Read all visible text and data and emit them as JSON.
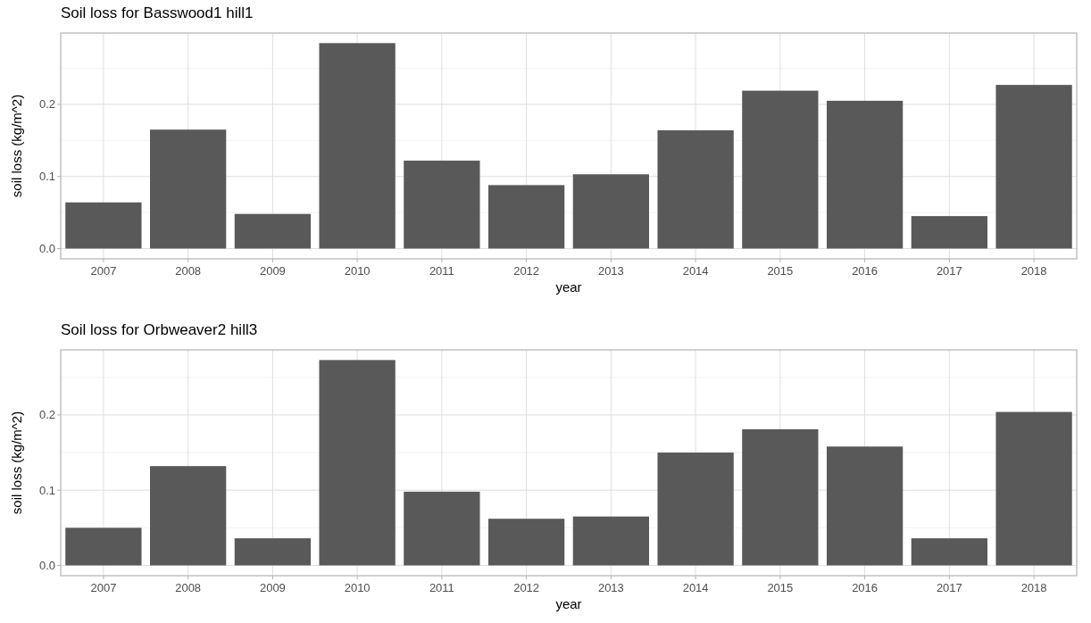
{
  "chart_data": [
    {
      "type": "bar",
      "title": "Soil loss for Basswood1 hill1",
      "xlabel": "year",
      "ylabel": "soil loss (kg/m^2)",
      "categories": [
        "2007",
        "2008",
        "2009",
        "2010",
        "2011",
        "2012",
        "2013",
        "2014",
        "2015",
        "2016",
        "2017",
        "2018"
      ],
      "values": [
        0.064,
        0.165,
        0.048,
        0.285,
        0.122,
        0.088,
        0.103,
        0.164,
        0.219,
        0.205,
        0.045,
        0.227
      ],
      "color": "#595959",
      "ylim": [
        -0.0143,
        0.299
      ],
      "yticks": [
        {
          "value": 0,
          "label": "0.0"
        },
        {
          "value": 0.1,
          "label": "0.1"
        },
        {
          "value": 0.2,
          "label": "0.2"
        }
      ],
      "grid": true
    },
    {
      "type": "bar",
      "title": "Soil loss for Orbweaver2 hill3",
      "xlabel": "year",
      "ylabel": "soil loss (kg/m^2)",
      "categories": [
        "2007",
        "2008",
        "2009",
        "2010",
        "2011",
        "2012",
        "2013",
        "2014",
        "2015",
        "2016",
        "2017",
        "2018"
      ],
      "values": [
        0.05,
        0.132,
        0.036,
        0.273,
        0.098,
        0.062,
        0.065,
        0.15,
        0.181,
        0.158,
        0.036,
        0.204
      ],
      "color": "#595959",
      "ylim": [
        -0.0137,
        0.2865
      ],
      "yticks": [
        {
          "value": 0,
          "label": "0.0"
        },
        {
          "value": 0.1,
          "label": "0.1"
        },
        {
          "value": 0.2,
          "label": "0.2"
        }
      ],
      "grid": true
    }
  ]
}
